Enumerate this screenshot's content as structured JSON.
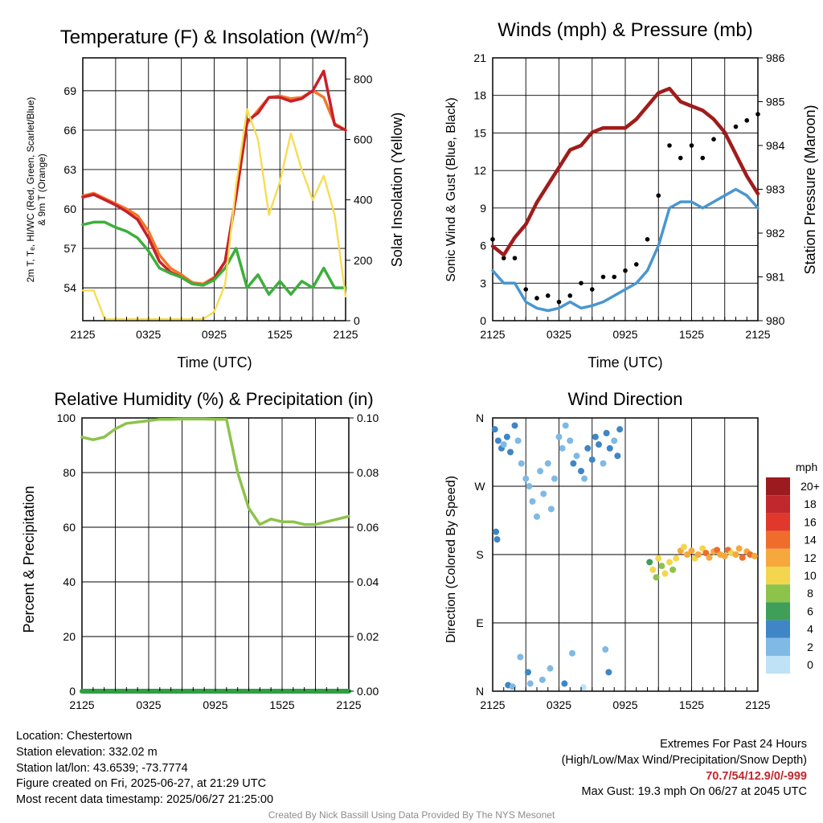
{
  "colors": {
    "temp": "#c8202a",
    "dewpoint_windchill": "#3caf3c",
    "t9m": "#f2782b",
    "insolation": "#f6dd55",
    "wind": "#4a96d0",
    "gust": "#000000",
    "pressure": "#a01c1c",
    "rh": "#8cc34b",
    "precip": "#2f9e44"
  },
  "chart_data": [
    {
      "type": "line",
      "title": "Temperature (F) & Insolation (W/m²)",
      "title_main": "Temperature (F) & Insolation (W/m",
      "title_sup": "2",
      "title_end": ")",
      "xlabel": "Time (UTC)",
      "ylabel_left_line1": "2m T, Tₑ, HI/WC (Red, Green, Scarlet/Blue)",
      "ylabel_left_line2": "& 9m T (Orange)",
      "ylabel_right": "Solar Insolation (Yellow)",
      "x_tick_labels": [
        "2125",
        "0325",
        "0925",
        "1525",
        "2125"
      ],
      "ylim": [
        51.5,
        71.5
      ],
      "y_ticks": [
        54,
        57,
        60,
        63,
        66,
        69
      ],
      "y2lim": [
        0,
        870
      ],
      "y2_ticks": [
        0,
        200,
        400,
        600,
        800
      ],
      "x_hours": [
        0,
        1,
        2,
        3,
        4,
        5,
        6,
        7,
        8,
        9,
        10,
        11,
        12,
        13,
        14,
        15,
        16,
        17,
        18,
        19,
        20,
        21,
        22,
        23,
        24
      ],
      "series": [
        {
          "key": "t9m",
          "axis": "left",
          "values": [
            61,
            61.2,
            60.8,
            60.4,
            60,
            59.5,
            58.3,
            56.5,
            55.5,
            55,
            54.4,
            54.3,
            54.8,
            56,
            61,
            66.5,
            67.5,
            68.5,
            68.6,
            68.4,
            68.5,
            69,
            68.5,
            66.5,
            66
          ]
        },
        {
          "key": "temp",
          "axis": "left",
          "values": [
            60.9,
            61.1,
            60.7,
            60.3,
            59.8,
            59.2,
            57.8,
            56,
            55.2,
            54.8,
            54.3,
            54.2,
            54.7,
            56,
            61,
            66.7,
            67.3,
            68.5,
            68.5,
            68.2,
            68.4,
            69,
            70.5,
            66.4,
            66
          ]
        },
        {
          "key": "dewpoint_windchill",
          "axis": "left",
          "values": [
            58.8,
            59,
            59,
            58.6,
            58.3,
            57.8,
            56.8,
            55.5,
            55.1,
            54.8,
            54.3,
            54.2,
            54.6,
            55.5,
            57,
            54,
            55,
            53.5,
            54.5,
            53.5,
            54.5,
            54,
            55.5,
            54,
            54
          ]
        },
        {
          "key": "insolation",
          "axis": "right",
          "values": [
            100,
            100,
            5,
            5,
            5,
            5,
            5,
            5,
            5,
            5,
            5,
            5,
            30,
            120,
            450,
            700,
            600,
            350,
            460,
            620,
            500,
            400,
            480,
            350,
            80
          ]
        }
      ]
    },
    {
      "type": "line",
      "title": "Winds (mph) & Pressure (mb)",
      "xlabel": "Time (UTC)",
      "ylabel_left": "Sonic Wind & Gust (Blue, Black)",
      "ylabel_right": "Station Pressure (Maroon)",
      "x_tick_labels": [
        "2125",
        "0325",
        "0925",
        "1525",
        "2125"
      ],
      "ylim": [
        0,
        21
      ],
      "y_ticks": [
        0,
        3,
        6,
        9,
        12,
        15,
        18,
        21
      ],
      "y2lim": [
        980,
        986
      ],
      "y2_ticks": [
        980,
        981,
        982,
        983,
        984,
        985,
        986
      ],
      "x_hours": [
        0,
        1,
        2,
        3,
        4,
        5,
        6,
        7,
        8,
        9,
        10,
        11,
        12,
        13,
        14,
        15,
        16,
        17,
        18,
        19,
        20,
        21,
        22,
        23,
        24
      ],
      "series": [
        {
          "key": "wind",
          "axis": "left",
          "values": [
            4,
            3,
            3,
            1.5,
            1,
            0.8,
            1,
            1.5,
            1,
            1.2,
            1.5,
            2,
            2.5,
            3,
            4,
            6,
            9,
            9.5,
            9.5,
            9,
            9.5,
            10,
            10.5,
            10,
            9
          ]
        },
        {
          "key": "gust",
          "axis": "left",
          "values": [
            6.5,
            5,
            5,
            2.5,
            1.8,
            2,
            1.5,
            2,
            3,
            2.5,
            3.5,
            3.5,
            4,
            4.5,
            6.5,
            10,
            14,
            13,
            14,
            13,
            14.5,
            15,
            15.5,
            16,
            16.5
          ]
        },
        {
          "key": "pressure",
          "axis": "right",
          "values": [
            981.7,
            981.5,
            981.9,
            982.2,
            982.7,
            983.1,
            983.5,
            983.9,
            984.0,
            984.3,
            984.4,
            984.4,
            984.4,
            984.6,
            984.9,
            985.2,
            985.3,
            985.0,
            984.9,
            984.8,
            984.6,
            984.3,
            983.8,
            983.3,
            982.9
          ]
        }
      ]
    },
    {
      "type": "line",
      "title": "Relative Humidity (%) & Precipitation (in)",
      "xlabel": "",
      "ylabel_left": "Percent & Precipitation",
      "x_tick_labels": [
        "2125",
        "0325",
        "0925",
        "1525",
        "2125"
      ],
      "ylim": [
        0,
        100
      ],
      "y_ticks": [
        0,
        20,
        40,
        60,
        80,
        100
      ],
      "y2lim": [
        0,
        0.1
      ],
      "y2_ticks": [
        "0.00",
        "0.02",
        "0.04",
        "0.06",
        "0.08",
        "0.10"
      ],
      "x_hours": [
        0,
        1,
        2,
        3,
        4,
        5,
        6,
        7,
        8,
        9,
        10,
        11,
        12,
        13,
        14,
        15,
        16,
        17,
        18,
        19,
        20,
        21,
        22,
        23,
        24
      ],
      "series": [
        {
          "key": "rh",
          "axis": "left",
          "values": [
            93,
            92,
            93,
            96,
            98,
            98.5,
            99,
            99.5,
            99.5,
            99.6,
            99.6,
            99.6,
            99.5,
            99.5,
            80,
            67,
            61,
            63,
            62,
            62,
            61,
            61,
            62,
            63,
            64
          ]
        },
        {
          "key": "precip",
          "axis": "right",
          "values": [
            0,
            0,
            0,
            0,
            0,
            0,
            0,
            0,
            0,
            0,
            0,
            0,
            0,
            0,
            0,
            0,
            0,
            0,
            0,
            0,
            0,
            0,
            0,
            0,
            0
          ]
        }
      ]
    },
    {
      "type": "scatter",
      "title": "Wind Direction",
      "xlabel": "",
      "ylabel_left": "Direction (Colored By Speed)",
      "x_tick_labels": [
        "2125",
        "0325",
        "0925",
        "1525",
        "2125"
      ],
      "y_tick_labels": [
        "N",
        "E",
        "S",
        "W",
        "N"
      ],
      "ylim": [
        0,
        360
      ],
      "legend_title": "mph",
      "legend_labels": [
        "20+",
        "18",
        "16",
        "14",
        "12",
        "10",
        "8",
        "6",
        "4",
        "2",
        "0"
      ],
      "legend_colors": [
        "#9b1b1f",
        "#c0282d",
        "#e0382c",
        "#f06c2b",
        "#f6a83c",
        "#f4d64e",
        "#8cc34b",
        "#3f9e57",
        "#3e86c6",
        "#7fb9e4",
        "#bfe2f7"
      ],
      "points": [
        {
          "h": 0.2,
          "dir": 345,
          "spd": 4
        },
        {
          "h": 0.5,
          "dir": 330,
          "spd": 3
        },
        {
          "h": 0.8,
          "dir": 320,
          "spd": 3
        },
        {
          "h": 1.0,
          "dir": 325,
          "spd": 2
        },
        {
          "h": 1.3,
          "dir": 335,
          "spd": 4
        },
        {
          "h": 1.6,
          "dir": 315,
          "spd": 3
        },
        {
          "h": 2.0,
          "dir": 350,
          "spd": 4
        },
        {
          "h": 2.3,
          "dir": 330,
          "spd": 2
        },
        {
          "h": 0.3,
          "dir": 210,
          "spd": 3
        },
        {
          "h": 0.4,
          "dir": 200,
          "spd": 4
        },
        {
          "h": 2.6,
          "dir": 300,
          "spd": 2
        },
        {
          "h": 3.0,
          "dir": 280,
          "spd": 1
        },
        {
          "h": 3.3,
          "dir": 270,
          "spd": 2
        },
        {
          "h": 3.6,
          "dir": 250,
          "spd": 1
        },
        {
          "h": 4.0,
          "dir": 230,
          "spd": 1
        },
        {
          "h": 4.3,
          "dir": 290,
          "spd": 1
        },
        {
          "h": 4.6,
          "dir": 260,
          "spd": 2
        },
        {
          "h": 5.0,
          "dir": 300,
          "spd": 2
        },
        {
          "h": 5.3,
          "dir": 240,
          "spd": 1
        },
        {
          "h": 5.6,
          "dir": 280,
          "spd": 2
        },
        {
          "h": 6.0,
          "dir": 335,
          "spd": 2
        },
        {
          "h": 6.3,
          "dir": 320,
          "spd": 2
        },
        {
          "h": 6.6,
          "dir": 350,
          "spd": 1
        },
        {
          "h": 7.0,
          "dir": 330,
          "spd": 2
        },
        {
          "h": 7.3,
          "dir": 300,
          "spd": 3
        },
        {
          "h": 7.6,
          "dir": 310,
          "spd": 2
        },
        {
          "h": 8.0,
          "dir": 290,
          "spd": 3
        },
        {
          "h": 8.3,
          "dir": 280,
          "spd": 2
        },
        {
          "h": 8.6,
          "dir": 320,
          "spd": 3
        },
        {
          "h": 9.0,
          "dir": 305,
          "spd": 3
        },
        {
          "h": 9.3,
          "dir": 335,
          "spd": 4
        },
        {
          "h": 9.6,
          "dir": 325,
          "spd": 3
        },
        {
          "h": 10.0,
          "dir": 300,
          "spd": 2
        },
        {
          "h": 10.3,
          "dir": 340,
          "spd": 3
        },
        {
          "h": 10.6,
          "dir": 320,
          "spd": 4
        },
        {
          "h": 11.0,
          "dir": 330,
          "spd": 2
        },
        {
          "h": 11.3,
          "dir": 310,
          "spd": 3
        },
        {
          "h": 11.5,
          "dir": 345,
          "spd": 3
        },
        {
          "h": 1.4,
          "dir": 8,
          "spd": 4
        },
        {
          "h": 1.8,
          "dir": 6,
          "spd": 2
        },
        {
          "h": 2.5,
          "dir": 45,
          "spd": 2
        },
        {
          "h": 3.2,
          "dir": 25,
          "spd": 4
        },
        {
          "h": 3.4,
          "dir": 10,
          "spd": 1
        },
        {
          "h": 4.5,
          "dir": 15,
          "spd": 1
        },
        {
          "h": 5.2,
          "dir": 30,
          "spd": 2
        },
        {
          "h": 6.5,
          "dir": 10,
          "spd": 3
        },
        {
          "h": 7.2,
          "dir": 50,
          "spd": 1
        },
        {
          "h": 8.2,
          "dir": 5,
          "spd": 0
        },
        {
          "h": 10.2,
          "dir": 55,
          "spd": 2
        },
        {
          "h": 10.5,
          "dir": 25,
          "spd": 3
        },
        {
          "h": 14.2,
          "dir": 170,
          "spd": 6
        },
        {
          "h": 14.5,
          "dir": 160,
          "spd": 10
        },
        {
          "h": 14.8,
          "dir": 150,
          "spd": 8
        },
        {
          "h": 15.0,
          "dir": 175,
          "spd": 9
        },
        {
          "h": 15.3,
          "dir": 165,
          "spd": 7
        },
        {
          "h": 15.6,
          "dir": 155,
          "spd": 10
        },
        {
          "h": 16.0,
          "dir": 170,
          "spd": 9
        },
        {
          "h": 16.3,
          "dir": 160,
          "spd": 8
        },
        {
          "h": 16.6,
          "dir": 175,
          "spd": 10
        },
        {
          "h": 17.0,
          "dir": 185,
          "spd": 12
        },
        {
          "h": 17.3,
          "dir": 190,
          "spd": 10
        },
        {
          "h": 17.6,
          "dir": 180,
          "spd": 11
        },
        {
          "h": 18.0,
          "dir": 185,
          "spd": 12
        },
        {
          "h": 18.3,
          "dir": 175,
          "spd": 9
        },
        {
          "h": 18.6,
          "dir": 180,
          "spd": 12
        },
        {
          "h": 19.0,
          "dir": 188,
          "spd": 10
        },
        {
          "h": 19.3,
          "dir": 182,
          "spd": 13
        },
        {
          "h": 19.6,
          "dir": 176,
          "spd": 11
        },
        {
          "h": 20.0,
          "dir": 184,
          "spd": 12
        },
        {
          "h": 20.3,
          "dir": 186,
          "spd": 14
        },
        {
          "h": 20.6,
          "dir": 180,
          "spd": 11
        },
        {
          "h": 21.0,
          "dir": 178,
          "spd": 12
        },
        {
          "h": 21.3,
          "dir": 186,
          "spd": 13
        },
        {
          "h": 21.6,
          "dir": 182,
          "spd": 10
        },
        {
          "h": 22.0,
          "dir": 180,
          "spd": 12
        },
        {
          "h": 22.3,
          "dir": 188,
          "spd": 11
        },
        {
          "h": 22.6,
          "dir": 176,
          "spd": 13
        },
        {
          "h": 23.0,
          "dir": 184,
          "spd": 12
        },
        {
          "h": 23.3,
          "dir": 180,
          "spd": 14
        },
        {
          "h": 23.7,
          "dir": 178,
          "spd": 12
        }
      ]
    }
  ],
  "footer": {
    "location": "Location: Chestertown",
    "elevation": "Station elevation: 332.02 m",
    "latlon": "Station lat/lon: 43.6539; -73.7774",
    "created": "Figure created on Fri, 2025-06-27, at 21:29 UTC",
    "recent": "Most recent data timestamp: 2025/06/27 21:25:00",
    "extremes_title": "Extremes For Past 24 Hours",
    "extremes_desc": "(High/Low/Max Wind/Precipitation/Snow Depth)",
    "extremes_values": "70.7/54/12.9/0/-999",
    "max_gust": "Max Gust: 19.3 mph On 06/27 at 2045 UTC",
    "credit": "Created By Nick Bassill Using Data Provided By The NYS Mesonet"
  }
}
